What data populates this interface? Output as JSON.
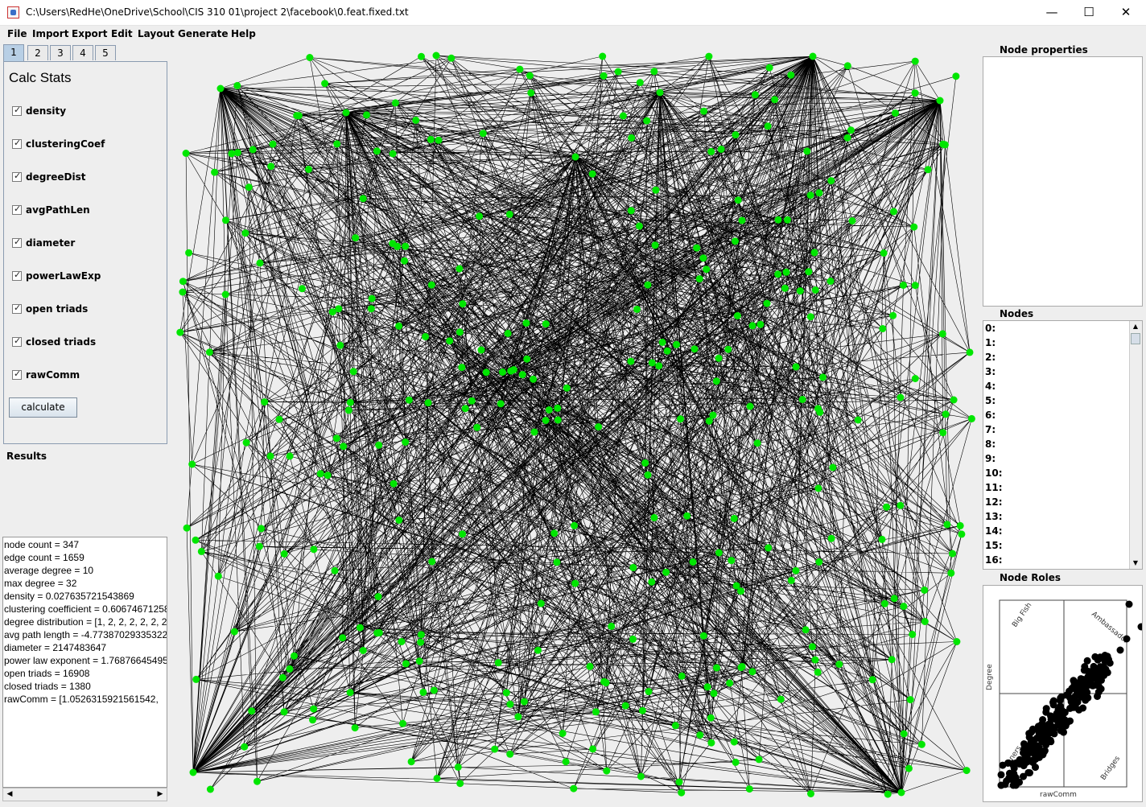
{
  "window": {
    "title": "C:\\Users\\RedHe\\OneDrive\\School\\CIS 310 01\\project 2\\facebook\\0.feat.fixed.txt",
    "minimize": "—",
    "maximize": "☐",
    "close": "✕"
  },
  "menu": [
    "File",
    "Import",
    "Export",
    "Edit",
    "Layout",
    "Generate",
    "Help"
  ],
  "tabs": [
    "1",
    "2",
    "3",
    "4",
    "5"
  ],
  "calc": {
    "title": "Calc Stats",
    "checkboxes": [
      "density",
      "clusteringCoef",
      "degreeDist",
      "avgPathLen",
      "diameter",
      "powerLawExp",
      "open triads",
      "closed triads",
      "rawComm"
    ],
    "button": "calculate"
  },
  "results": {
    "label": "Results",
    "lines": [
      "node count = 347",
      "edge count = 1659",
      "average degree = 10",
      "max degree = 32",
      "density = 0.027635721543869",
      "clustering coefficient = 0.60674671258",
      "degree distribution = [1, 2, 2, 2, 2, 2, 2",
      "avg path length = -4.77387029335322",
      "diameter = 2147483647",
      "power law exponent = 1.76876645495",
      "open triads = 16908",
      "closed triads = 1380",
      "rawComm = [1.0526315921561542,"
    ]
  },
  "node_properties": {
    "label": "Node properties"
  },
  "nodes": {
    "label": "Nodes",
    "items": [
      "0:",
      "1:",
      "2:",
      "3:",
      "4:",
      "5:",
      "6:",
      "7:",
      "8:",
      "9:",
      "10:",
      "11:",
      "12:",
      "13:",
      "14:",
      "15:",
      "16:"
    ]
  },
  "node_roles": {
    "label": "Node Roles",
    "quadrant_labels": {
      "top_left": "Big Fish",
      "top_right": "Ambassador",
      "bottom_left": "Loners",
      "bottom_right": "Bridges"
    },
    "x_label": "rawComm",
    "y_label": "Degree"
  },
  "colors": {
    "node": "#00e600",
    "edge": "#000000",
    "accent_tab": "#b8cfe5"
  }
}
